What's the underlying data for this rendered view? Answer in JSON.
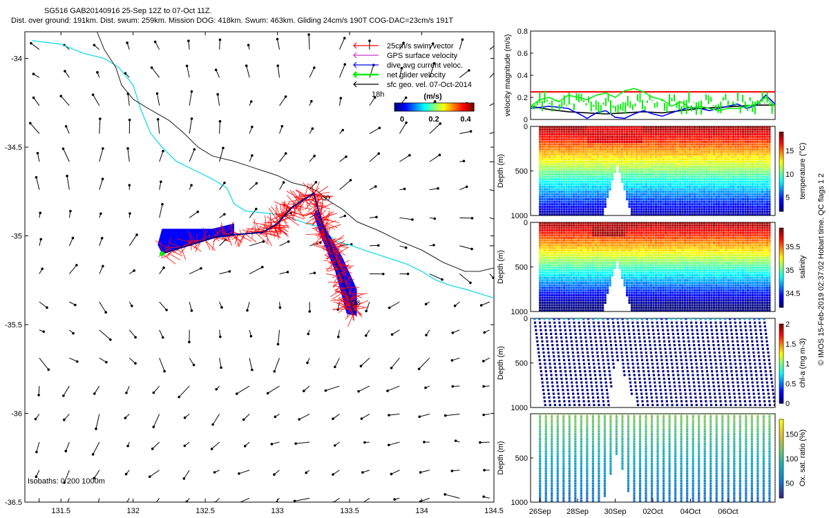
{
  "header": {
    "line1": "SG516 GAB20140916 25-Sep 12Z to 07-Oct 11Z.",
    "line2": "Dist. over ground: 191km. Dist. swum: 259km. Mission DOG: 418km. Swum: 463km. Gliding 24cm/s 190T COG-DAC=23cm/s 191T"
  },
  "side_caption": "© IMOS 15-Feb-2019 02:37:02 Hobart time. QC flags 1  2",
  "colors": {
    "swim": "#ff0000",
    "gps": "#cc33cc",
    "dac": "#0000ff",
    "net": "#00ee00",
    "geo": "#000000",
    "coast": "#00d8e8",
    "isobath": "#000000"
  },
  "chart_data": [
    {
      "type": "map",
      "xlim": [
        131.25,
        134.5
      ],
      "ylim": [
        -36.5,
        -33.85
      ],
      "xticks": [
        "131.5",
        "132",
        "132.5",
        "133",
        "133.5",
        "134",
        "134.5"
      ],
      "yticks": [
        "-34",
        "-34.5",
        "-35",
        "-35.5",
        "-36",
        "-36.5"
      ],
      "legend": [
        {
          "label": "25cm/s swim vector",
          "color": "#ff0000"
        },
        {
          "label": "GPS surface velocity",
          "color": "#cc33cc"
        },
        {
          "label": "dive avg current veloc.",
          "color": "#0000ff"
        },
        {
          "label": "net glider velocity",
          "color": "#00ee00"
        },
        {
          "label": "sfc geo. vel. 07-Oct-2014",
          "color": "#000000"
        }
      ],
      "colorbar": {
        "title": "(m/s)",
        "ticks": [
          "0",
          "0.2",
          "0.4"
        ],
        "range": [
          0,
          0.5
        ]
      },
      "annotations": {
        "hour": "18h",
        "isobaths": "Isobaths: 0   200  1000m",
        "day_start": "26",
        "day_mid": "30"
      },
      "track": [
        [
          132.2,
          -35.1
        ],
        [
          132.6,
          -35.0
        ],
        [
          132.9,
          -34.98
        ],
        [
          133.0,
          -34.93
        ],
        [
          133.1,
          -34.84
        ],
        [
          133.25,
          -34.76
        ],
        [
          133.3,
          -34.9
        ],
        [
          133.35,
          -35.03
        ],
        [
          133.42,
          -35.17
        ],
        [
          133.5,
          -35.35
        ],
        [
          133.53,
          -35.44
        ]
      ],
      "coast": [
        [
          131.3,
          -33.9
        ],
        [
          131.5,
          -33.92
        ],
        [
          131.65,
          -33.97
        ],
        [
          131.8,
          -34.0
        ],
        [
          131.9,
          -34.05
        ],
        [
          131.95,
          -34.1
        ],
        [
          132.0,
          -34.15
        ],
        [
          132.05,
          -34.28
        ],
        [
          132.12,
          -34.42
        ],
        [
          132.2,
          -34.5
        ],
        [
          132.3,
          -34.58
        ],
        [
          132.4,
          -34.62
        ],
        [
          132.55,
          -34.68
        ],
        [
          132.65,
          -34.73
        ],
        [
          132.7,
          -34.82
        ],
        [
          132.78,
          -34.86
        ],
        [
          132.9,
          -34.87
        ],
        [
          133.0,
          -34.88
        ],
        [
          133.1,
          -34.9
        ],
        [
          133.2,
          -34.93
        ],
        [
          133.3,
          -34.95
        ],
        [
          133.4,
          -35.03
        ],
        [
          133.5,
          -35.05
        ],
        [
          133.6,
          -35.08
        ],
        [
          133.75,
          -35.12
        ],
        [
          133.9,
          -35.16
        ],
        [
          134.0,
          -35.2
        ],
        [
          134.1,
          -35.25
        ],
        [
          134.2,
          -35.28
        ],
        [
          134.3,
          -35.3
        ],
        [
          134.38,
          -35.32
        ],
        [
          134.5,
          -35.35
        ]
      ],
      "isobath": [
        [
          131.75,
          -33.85
        ],
        [
          131.8,
          -33.95
        ],
        [
          131.88,
          -34.05
        ],
        [
          131.92,
          -34.15
        ],
        [
          132.0,
          -34.23
        ],
        [
          132.1,
          -34.28
        ],
        [
          132.25,
          -34.35
        ],
        [
          132.35,
          -34.42
        ],
        [
          132.45,
          -34.5
        ],
        [
          132.55,
          -34.55
        ],
        [
          132.7,
          -34.58
        ],
        [
          132.85,
          -34.62
        ],
        [
          133.0,
          -34.66
        ],
        [
          133.1,
          -34.7
        ],
        [
          133.2,
          -34.72
        ],
        [
          133.28,
          -34.75
        ],
        [
          133.35,
          -34.8
        ],
        [
          133.45,
          -34.85
        ],
        [
          133.55,
          -34.92
        ],
        [
          133.7,
          -34.97
        ],
        [
          133.85,
          -35.03
        ],
        [
          134.0,
          -35.08
        ],
        [
          134.15,
          -35.15
        ],
        [
          134.3,
          -35.2
        ],
        [
          134.4,
          -35.2
        ],
        [
          134.5,
          -35.18
        ]
      ]
    },
    {
      "type": "line",
      "ylabel": "velocity magnitude (m/s)",
      "ylim": [
        0,
        0.8
      ],
      "yticks": [
        "0",
        "0.2",
        "0.4",
        "0.6",
        "0.8"
      ],
      "xlim": [
        25.5,
        38.5
      ],
      "xticks": [
        "26Sep",
        "28Sep",
        "30Sep",
        "02Oct",
        "04Oct",
        "06Oct"
      ],
      "xtick_days": [
        26,
        28,
        30,
        32,
        34,
        36
      ],
      "series": [
        {
          "color": "#ff0000",
          "x": [
            25.5,
            38.5
          ],
          "y": [
            0.25,
            0.25
          ]
        },
        {
          "color": "#000000",
          "x": [
            25.5,
            26.5,
            27.5,
            28.5,
            29.5,
            30.5,
            31.5,
            32.5,
            33.5,
            34.5,
            35.5,
            36.5,
            37.5,
            38.5
          ],
          "y": [
            0.12,
            0.09,
            0.07,
            0.06,
            0.05,
            0.06,
            0.07,
            0.06,
            0.08,
            0.1,
            0.11,
            0.12,
            0.13,
            0.13
          ]
        },
        {
          "color": "#0000ff",
          "x": [
            25.5,
            26.5,
            27.5,
            28.2,
            28.5,
            29.0,
            29.5,
            30.0,
            30.5,
            31.0,
            31.5,
            32.0,
            32.5,
            33.0,
            33.5,
            34.0,
            34.5,
            35.0,
            35.5,
            36.0,
            36.5,
            37.0,
            37.5,
            38.0,
            38.5
          ],
          "y": [
            0.1,
            0.12,
            0.1,
            0.04,
            0.01,
            0.06,
            0.08,
            0.02,
            0.01,
            0.05,
            0.08,
            0.05,
            0.03,
            0.06,
            0.09,
            0.11,
            0.1,
            0.08,
            0.1,
            0.12,
            0.14,
            0.1,
            0.13,
            0.22,
            0.14
          ]
        },
        {
          "color": "#00ee00",
          "x": [
            25.5,
            26.0,
            26.5,
            27.0,
            27.5,
            28.0,
            28.5,
            29.0,
            29.5,
            30.0,
            30.5,
            31.0,
            31.5,
            32.0,
            32.5,
            33.0,
            33.5,
            34.0,
            34.5,
            35.0,
            35.5,
            36.0,
            36.5,
            37.0,
            37.5,
            38.0,
            38.5
          ],
          "y": [
            0.12,
            0.18,
            0.2,
            0.16,
            0.22,
            0.2,
            0.18,
            0.22,
            0.24,
            0.2,
            0.26,
            0.28,
            0.25,
            0.2,
            0.18,
            0.12,
            0.16,
            0.1,
            0.12,
            0.1,
            0.08,
            0.1,
            0.1,
            0.12,
            0.14,
            0.2,
            0.12
          ]
        }
      ]
    },
    {
      "type": "scatter",
      "ylabel": "Depth (m)",
      "clabel": "temperature (°C)",
      "yticks": [
        "0",
        "500",
        "1000"
      ],
      "crange": [
        2,
        19
      ],
      "cticks": [
        "5",
        "10",
        "15"
      ],
      "xlim": [
        25.5,
        38.5
      ],
      "ylim": [
        1000,
        0
      ],
      "dive_day_range": [
        26.0,
        38.2
      ],
      "dives": 96,
      "gap_center_day": 30.1,
      "gap_half_width_days": 0.75,
      "gap_min_depth": 430
    },
    {
      "type": "scatter",
      "ylabel": "Depth (m)",
      "clabel": "salinity",
      "yticks": [
        "0",
        "500",
        "1000"
      ],
      "crange": [
        34.2,
        35.9
      ],
      "cticks": [
        "34.5",
        "35",
        "35.5"
      ],
      "xlim": [
        25.5,
        38.5
      ],
      "ylim": [
        1000,
        0
      ],
      "dive_day_range": [
        26.0,
        38.2
      ],
      "dives": 96,
      "gap_center_day": 30.1,
      "gap_half_width_days": 0.75,
      "gap_min_depth": 430
    },
    {
      "type": "scatter",
      "ylabel": "Depth (m)",
      "clabel": "chl-a (mg m-3)",
      "yticks": [
        "0",
        "500",
        "1000"
      ],
      "crange": [
        0,
        2
      ],
      "cticks": [
        "0",
        "0.5",
        "1",
        "1.5",
        "2"
      ],
      "xlim": [
        25.5,
        38.5
      ],
      "ylim": [
        1000,
        0
      ],
      "dive_day_range": [
        26.0,
        38.2
      ],
      "dives": 48,
      "gap_center_day": 30.1,
      "gap_half_width_days": 0.75,
      "gap_min_depth": 430
    },
    {
      "type": "scatter",
      "ylabel": "Depth (m)",
      "clabel": "Ox. sat. ratio (%)",
      "yticks": [
        "500",
        "1000"
      ],
      "crange": [
        20,
        180
      ],
      "cticks": [
        "50",
        "100",
        "150"
      ],
      "xlim": [
        25.5,
        38.5
      ],
      "ylim": [
        1000,
        0
      ],
      "dive_day_range": [
        26.0,
        38.2
      ],
      "dives": 40,
      "gap_center_day": 30.1,
      "gap_half_width_days": 0.75,
      "gap_min_depth": 430
    }
  ]
}
